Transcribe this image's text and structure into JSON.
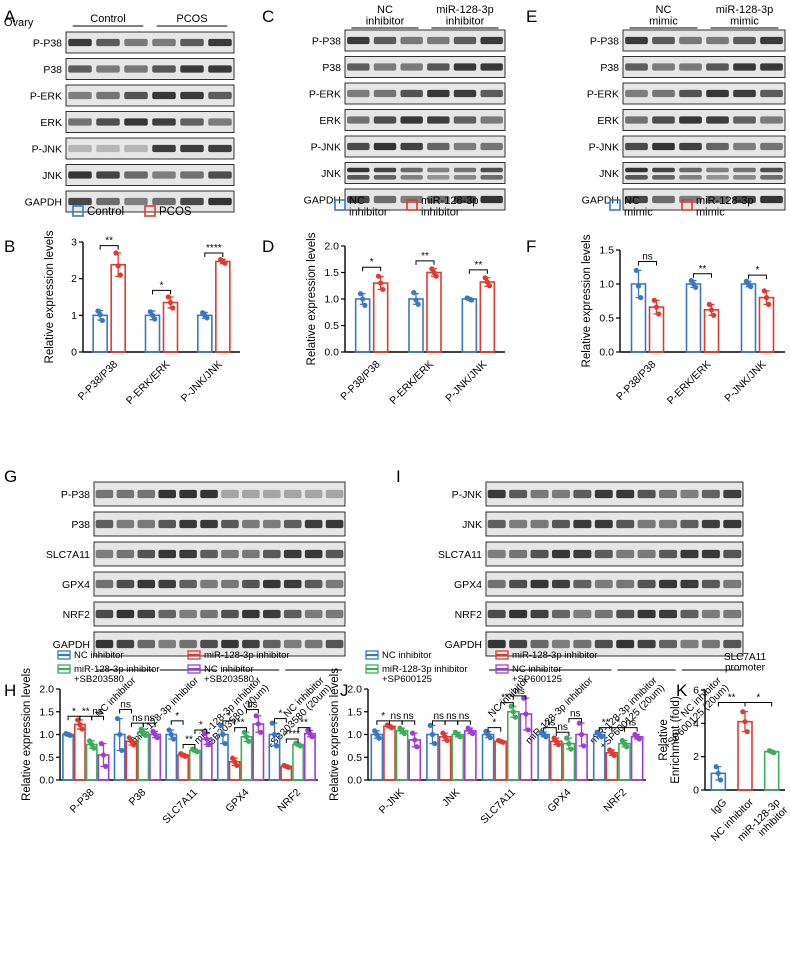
{
  "colors": {
    "blue": "#3a78c3",
    "red": "#e03a2f",
    "green": "#3aae5a",
    "purple": "#a13bd6",
    "blot_bg": "#e6e6e6",
    "band": "#2a2a2a"
  },
  "panels": {
    "A": {
      "letter": "A",
      "row_header": "Ovary",
      "groups": [
        "Control",
        "PCOS"
      ],
      "bands": [
        "P-P38",
        "P38",
        "P-ERK",
        "ERK",
        "P-JNK",
        "JNK",
        "GAPDH"
      ]
    },
    "C": {
      "letter": "C",
      "groups": [
        "NC\ninhibitor",
        "miR-128-3p\ninhibitor"
      ],
      "bands": [
        "P-P38",
        "P38",
        "P-ERK",
        "ERK",
        "P-JNK",
        "JNK",
        "GAPDH"
      ]
    },
    "E": {
      "letter": "E",
      "groups": [
        "NC\nmimic",
        "miR-128-3p\nmimic"
      ],
      "bands": [
        "P-P38",
        "P38",
        "P-ERK",
        "ERK",
        "P-JNK",
        "JNK",
        "GAPDH"
      ]
    },
    "G": {
      "letter": "G",
      "bands": [
        "P-P38",
        "P38",
        "SLC7A11",
        "GPX4",
        "NRF2",
        "GAPDH"
      ],
      "lanes": [
        "NC inhibitor",
        "miR-128-3p inhibitor",
        "miR-128-3p inhibitor\n+SB203580 (20um)",
        "NC inhibitor\n+SB203580 (20um)"
      ]
    },
    "I": {
      "letter": "I",
      "bands": [
        "P-JNK",
        "JNK",
        "SLC7A11",
        "GPX4",
        "NRF2",
        "GAPDH"
      ],
      "lanes": [
        "NC inhibitor",
        "miR-128-3p inhibitor",
        "miR-128-3p inhibitor\n+SP600125 (20um)",
        "NC inhibitor\n+SP600125 (20um)"
      ]
    }
  },
  "chart_data": [
    {
      "id": "B",
      "letter": "B",
      "type": "bar",
      "ylabel": "Relative expression levels",
      "ylim": [
        0,
        3
      ],
      "yticks": [
        0,
        1,
        2,
        3
      ],
      "categories": [
        "P-P38/P38",
        "P-ERK/ERK",
        "P-JNK/JNK"
      ],
      "series": [
        {
          "name": "Control",
          "color": "blue",
          "values": [
            1.0,
            1.0,
            1.0
          ],
          "errors": [
            0.13,
            0.12,
            0.08
          ],
          "points": [
            [
              1.12,
              1.02,
              0.86
            ],
            [
              1.1,
              1.0,
              0.9
            ],
            [
              1.07,
              1.0,
              0.93
            ]
          ]
        },
        {
          "name": "PCOS",
          "color": "red",
          "values": [
            2.38,
            1.35,
            2.47
          ],
          "errors": [
            0.32,
            0.15,
            0.06
          ],
          "points": [
            [
              2.7,
              2.35,
              2.1
            ],
            [
              1.5,
              1.35,
              1.2
            ],
            [
              2.52,
              2.46,
              2.42
            ]
          ]
        }
      ],
      "sig": [
        {
          "cat": 0,
          "text": "**",
          "y": 2.9
        },
        {
          "cat": 1,
          "text": "*",
          "y": 1.68
        },
        {
          "cat": 2,
          "text": "****",
          "y": 2.7
        }
      ]
    },
    {
      "id": "D",
      "letter": "D",
      "type": "bar",
      "ylabel": "Relative expression levels",
      "ylim": [
        0,
        2
      ],
      "yticks": [
        0.0,
        0.5,
        1.0,
        1.5,
        2.0
      ],
      "categories": [
        "P-P38/P38",
        "P-ERK/ERK",
        "P-JNK/JNK"
      ],
      "series": [
        {
          "name": "NC\ninhibitor",
          "color": "blue",
          "values": [
            1.0,
            1.0,
            1.0
          ],
          "errors": [
            0.1,
            0.1,
            0.02
          ],
          "points": [
            [
              1.1,
              1.0,
              0.88
            ],
            [
              1.12,
              0.98,
              0.9
            ],
            [
              1.02,
              1.0,
              0.98
            ]
          ]
        },
        {
          "name": "miR-128-3p\ninhibitor",
          "color": "red",
          "values": [
            1.3,
            1.5,
            1.32
          ],
          "errors": [
            0.12,
            0.07,
            0.08
          ],
          "points": [
            [
              1.43,
              1.3,
              1.18
            ],
            [
              1.57,
              1.5,
              1.43
            ],
            [
              1.4,
              1.32,
              1.25
            ]
          ]
        }
      ],
      "sig": [
        {
          "cat": 0,
          "text": "*",
          "y": 1.6
        },
        {
          "cat": 1,
          "text": "**",
          "y": 1.72
        },
        {
          "cat": 2,
          "text": "**",
          "y": 1.55
        }
      ]
    },
    {
      "id": "F",
      "letter": "F",
      "type": "bar",
      "ylabel": "Relative expression levels",
      "ylim": [
        0,
        1.5
      ],
      "yticks": [
        0.0,
        0.5,
        1.0,
        1.5
      ],
      "categories": [
        "P-P38/P38",
        "P-ERK/ERK",
        "P-JNK/JNK"
      ],
      "series": [
        {
          "name": "NC\nmimic",
          "color": "blue",
          "values": [
            1.0,
            1.0,
            1.0
          ],
          "errors": [
            0.2,
            0.05,
            0.04
          ],
          "points": [
            [
              1.2,
              0.97,
              0.8
            ],
            [
              1.05,
              1.0,
              0.95
            ],
            [
              1.04,
              1.0,
              0.96
            ]
          ]
        },
        {
          "name": "miR-128-3p\nmimic",
          "color": "red",
          "values": [
            0.66,
            0.62,
            0.8
          ],
          "errors": [
            0.1,
            0.08,
            0.1
          ],
          "points": [
            [
              0.76,
              0.66,
              0.56
            ],
            [
              0.7,
              0.62,
              0.54
            ],
            [
              0.9,
              0.8,
              0.7
            ]
          ]
        }
      ],
      "sig": [
        {
          "cat": 0,
          "text": "ns",
          "y": 1.33
        },
        {
          "cat": 1,
          "text": "**",
          "y": 1.15
        },
        {
          "cat": 2,
          "text": "*",
          "y": 1.13
        }
      ]
    },
    {
      "id": "H",
      "letter": "H",
      "type": "bar",
      "ylabel": "Relative expression levels",
      "ylim": [
        0,
        2
      ],
      "yticks": [
        0.0,
        0.5,
        1.0,
        1.5,
        2.0
      ],
      "categories": [
        "P-P38",
        "P38",
        "SLC7A11",
        "GPX4",
        "NRF2"
      ],
      "series": [
        {
          "name": "NC inhibitor",
          "color": "blue",
          "values": [
            1.0,
            1.0,
            1.0,
            1.0,
            1.0
          ],
          "errors": [
            0.03,
            0.35,
            0.1,
            0.2,
            0.25
          ],
          "points": [
            [
              1.02,
              1.0,
              0.98
            ],
            [
              1.35,
              1.0,
              0.65
            ],
            [
              1.1,
              1.0,
              0.9
            ],
            [
              1.2,
              1.0,
              0.8
            ],
            [
              1.25,
              1.0,
              0.75
            ]
          ]
        },
        {
          "name": "miR-128-3p inhibitor",
          "color": "red",
          "values": [
            1.22,
            0.85,
            0.55,
            0.4,
            0.3
          ],
          "errors": [
            0.1,
            0.08,
            0.03,
            0.08,
            0.02
          ],
          "points": [
            [
              1.32,
              1.22,
              1.12
            ],
            [
              0.93,
              0.85,
              0.77
            ],
            [
              0.58,
              0.55,
              0.52
            ],
            [
              0.48,
              0.4,
              0.32
            ],
            [
              0.32,
              0.3,
              0.28
            ]
          ]
        },
        {
          "name": "miR-128-3p inhibitor\n+SB203580",
          "color": "green",
          "values": [
            0.78,
            1.05,
            0.65,
            0.95,
            0.78
          ],
          "errors": [
            0.08,
            0.07,
            0.03,
            0.1,
            0.03
          ],
          "points": [
            [
              0.86,
              0.78,
              0.7
            ],
            [
              1.12,
              1.05,
              0.98
            ],
            [
              0.68,
              0.65,
              0.62
            ],
            [
              1.05,
              0.95,
              0.85
            ],
            [
              0.81,
              0.78,
              0.75
            ]
          ]
        },
        {
          "name": "NC inhibitor\n+SB203580",
          "color": "purple",
          "values": [
            0.55,
            1.0,
            0.9,
            1.23,
            1.02
          ],
          "errors": [
            0.25,
            0.07,
            0.12,
            0.18,
            0.07
          ],
          "points": [
            [
              0.8,
              0.55,
              0.3
            ],
            [
              1.07,
              1.0,
              0.93
            ],
            [
              1.02,
              0.9,
              0.78
            ],
            [
              1.41,
              1.23,
              1.05
            ],
            [
              1.09,
              1.02,
              0.95
            ]
          ]
        }
      ],
      "sig": [
        {
          "cat": 0,
          "pair": [
            0,
            1
          ],
          "text": "*",
          "y": 1.4
        },
        {
          "cat": 0,
          "pair": [
            1,
            2
          ],
          "text": "**",
          "y": 1.4
        },
        {
          "cat": 0,
          "pair": [
            2,
            3
          ],
          "text": "ns",
          "y": 1.4
        },
        {
          "cat": 1,
          "pair": [
            0,
            1
          ],
          "text": "ns",
          "y": 1.55
        },
        {
          "cat": 1,
          "pair": [
            1,
            2
          ],
          "text": "ns",
          "y": 1.25
        },
        {
          "cat": 1,
          "pair": [
            2,
            3
          ],
          "text": "ns",
          "y": 1.25
        },
        {
          "cat": 2,
          "pair": [
            0,
            1
          ],
          "text": "*",
          "y": 1.3
        },
        {
          "cat": 2,
          "pair": [
            1,
            2
          ],
          "text": "**",
          "y": 0.78
        },
        {
          "cat": 2,
          "pair": [
            2,
            3
          ],
          "text": "*",
          "y": 1.1
        },
        {
          "cat": 3,
          "pair": [
            0,
            1
          ],
          "text": "*",
          "y": 1.3
        },
        {
          "cat": 3,
          "pair": [
            1,
            2
          ],
          "text": "**",
          "y": 1.15
        },
        {
          "cat": 3,
          "pair": [
            2,
            3
          ],
          "text": "ns",
          "y": 1.55
        },
        {
          "cat": 4,
          "pair": [
            0,
            1
          ],
          "text": "*",
          "y": 1.35
        },
        {
          "cat": 4,
          "pair": [
            1,
            2
          ],
          "text": "****",
          "y": 0.9
        },
        {
          "cat": 4,
          "pair": [
            2,
            3
          ],
          "text": "**",
          "y": 1.15
        }
      ]
    },
    {
      "id": "J",
      "letter": "J",
      "type": "bar",
      "ylabel": "Relative expression levels",
      "ylim": [
        0,
        2
      ],
      "yticks": [
        0.0,
        0.5,
        1.0,
        1.5,
        2.0
      ],
      "categories": [
        "P-JNK",
        "JNK",
        "SLC7A11",
        "GPX4",
        "NRF2"
      ],
      "series": [
        {
          "name": "NC inhibitor",
          "color": "blue",
          "values": [
            1.0,
            1.0,
            1.0,
            1.0,
            1.0
          ],
          "errors": [
            0.08,
            0.2,
            0.07,
            0.05,
            0.05
          ],
          "points": [
            [
              1.08,
              1.0,
              0.92
            ],
            [
              1.2,
              1.0,
              0.8
            ],
            [
              1.07,
              1.0,
              0.93
            ],
            [
              1.05,
              1.0,
              0.95
            ],
            [
              1.05,
              1.0,
              0.95
            ]
          ]
        },
        {
          "name": "miR-128-3p inhibitor",
          "color": "red",
          "values": [
            1.18,
            0.95,
            0.85,
            0.85,
            0.6
          ],
          "errors": [
            0.03,
            0.08,
            0.02,
            0.07,
            0.06
          ],
          "points": [
            [
              1.21,
              1.18,
              1.15
            ],
            [
              1.03,
              0.95,
              0.87
            ],
            [
              0.87,
              0.85,
              0.83
            ],
            [
              0.92,
              0.85,
              0.78
            ],
            [
              0.66,
              0.6,
              0.54
            ]
          ]
        },
        {
          "name": "miR-128-3p inhibitor\n+SP600125",
          "color": "green",
          "values": [
            1.08,
            1.0,
            1.5,
            0.8,
            0.8
          ],
          "errors": [
            0.06,
            0.05,
            0.12,
            0.12,
            0.07
          ],
          "points": [
            [
              1.14,
              1.08,
              1.02
            ],
            [
              1.05,
              1.0,
              0.95
            ],
            [
              1.62,
              1.5,
              1.38
            ],
            [
              0.92,
              0.8,
              0.68
            ],
            [
              0.87,
              0.8,
              0.73
            ]
          ]
        },
        {
          "name": "NC inhibitor\n+SP600125",
          "color": "purple",
          "values": [
            0.88,
            1.08,
            1.45,
            1.0,
            0.95
          ],
          "errors": [
            0.15,
            0.06,
            0.35,
            0.25,
            0.05
          ],
          "points": [
            [
              1.03,
              0.88,
              0.73
            ],
            [
              1.14,
              1.08,
              1.02
            ],
            [
              1.8,
              1.45,
              1.1
            ],
            [
              1.25,
              1.0,
              0.75
            ],
            [
              1.0,
              0.95,
              0.9
            ]
          ]
        }
      ],
      "sig": [
        {
          "cat": 0,
          "pair": [
            0,
            1
          ],
          "text": "*",
          "y": 1.3
        },
        {
          "cat": 0,
          "pair": [
            1,
            2
          ],
          "text": "ns",
          "y": 1.3
        },
        {
          "cat": 0,
          "pair": [
            2,
            3
          ],
          "text": "ns",
          "y": 1.3
        },
        {
          "cat": 1,
          "pair": [
            0,
            1
          ],
          "text": "ns",
          "y": 1.3
        },
        {
          "cat": 1,
          "pair": [
            1,
            2
          ],
          "text": "ns",
          "y": 1.3
        },
        {
          "cat": 1,
          "pair": [
            2,
            3
          ],
          "text": "ns",
          "y": 1.3
        },
        {
          "cat": 2,
          "pair": [
            0,
            1
          ],
          "text": "*",
          "y": 1.15
        },
        {
          "cat": 2,
          "pair": [
            1,
            2
          ],
          "text": "***",
          "y": 1.7
        },
        {
          "cat": 2,
          "pair": [
            2,
            3
          ],
          "text": "ns",
          "y": 1.85
        },
        {
          "cat": 3,
          "pair": [
            0,
            1
          ],
          "text": "ns",
          "y": 1.15
        },
        {
          "cat": 3,
          "pair": [
            1,
            2
          ],
          "text": "ns",
          "y": 1.05
        },
        {
          "cat": 3,
          "pair": [
            2,
            3
          ],
          "text": "ns",
          "y": 1.35
        },
        {
          "cat": 4,
          "pair": [
            0,
            1
          ],
          "text": "**",
          "y": 1.15
        },
        {
          "cat": 4,
          "pair": [
            1,
            2
          ],
          "text": "*",
          "y": 1.15
        },
        {
          "cat": 4,
          "pair": [
            2,
            3
          ],
          "text": "ns",
          "y": 1.15
        }
      ]
    },
    {
      "id": "K",
      "letter": "K",
      "type": "bar",
      "title": "SLC7A11\npromoter",
      "ylabel": "Relative\nEnrichment (fold)",
      "ylim": [
        0,
        6
      ],
      "yticks": [
        0,
        2,
        4,
        6
      ],
      "categories": [
        "IgG",
        "NC inhibitor",
        "miR-128-3p\ninhibitor"
      ],
      "series": [
        {
          "name": "",
          "colors_per_cat": [
            "blue",
            "red",
            "green"
          ],
          "values": [
            1.0,
            4.1,
            2.3
          ],
          "errors": [
            0.4,
            0.6,
            0.06
          ],
          "points": [
            [
              1.4,
              1.0,
              0.6
            ],
            [
              4.7,
              4.1,
              3.5
            ],
            [
              2.36,
              2.3,
              2.24
            ]
          ]
        }
      ],
      "sig": [
        {
          "pair": [
            0,
            1
          ],
          "text": "**",
          "y": 5.25
        },
        {
          "pair": [
            1,
            2
          ],
          "text": "*",
          "y": 5.25
        }
      ]
    }
  ]
}
